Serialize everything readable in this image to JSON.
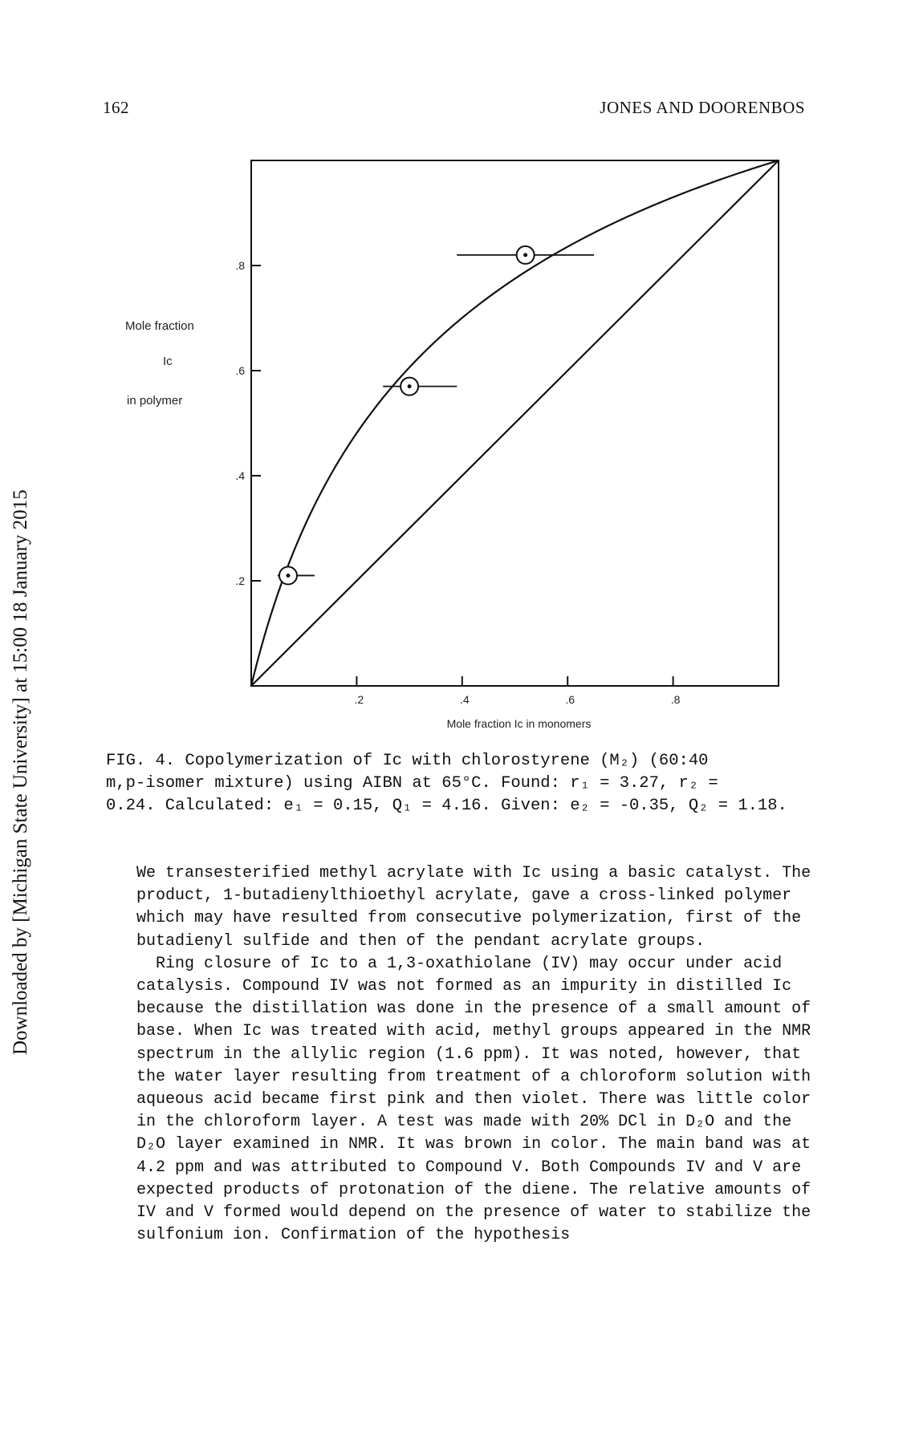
{
  "header": {
    "page_number": "162",
    "running_head": "JONES AND DOORENBOS"
  },
  "side_stamp": "Downloaded by [Michigan State University] at 15:00 18 January 2015",
  "figure": {
    "y_label_lines": [
      "Mole fraction",
      "Ic",
      "in polymer"
    ],
    "x_label": "Mole fraction Ic in monomers",
    "y_ticks": [
      ".8",
      ".6",
      ".4",
      ".2"
    ],
    "x_ticks": [
      ".2",
      ".4",
      ".6",
      ".8"
    ]
  },
  "chart_data": {
    "type": "scatter",
    "xlabel": "Mole fraction Ic in monomers",
    "ylabel": "Mole fraction Ic in polymer",
    "xlim": [
      0,
      1
    ],
    "ylim": [
      0,
      1
    ],
    "x_ticks": [
      0.2,
      0.4,
      0.6,
      0.8
    ],
    "y_ticks": [
      0.2,
      0.4,
      0.6,
      0.8
    ],
    "grid": false,
    "points": [
      {
        "x": 0.07,
        "y": 0.21,
        "xerr_low": 0.05,
        "xerr_high": 0.12
      },
      {
        "x": 0.3,
        "y": 0.57,
        "xerr_low": 0.25,
        "xerr_high": 0.39
      },
      {
        "x": 0.52,
        "y": 0.82,
        "xerr_low": 0.39,
        "xerr_high": 0.65
      }
    ],
    "curves": [
      {
        "kind": "copolymer-composition",
        "r1": 3.27,
        "r2": 0.24
      },
      {
        "kind": "diagonal",
        "x": [
          0,
          1
        ],
        "y": [
          0,
          1
        ]
      }
    ]
  },
  "caption": {
    "lines": [
      "FIG. 4. Copolymerization of Ic with chlorostyrene (M₂) (60:40",
      "m,p-isomer mixture) using AIBN at 65°C.  Found: r₁ = 3.27, r₂ =",
      "0.24.  Calculated: e₁ = 0.15, Q₁ = 4.16.  Given: e₂ = -0.35, Q₂ = 1.18."
    ]
  },
  "body": {
    "paragraphs": [
      "We transesterified methyl acrylate with Ic using a basic catalyst. The product, 1-butadienylthioethyl acrylate, gave a cross-linked polymer which may have resulted from consecutive polymerization, first of the butadienyl sulfide and then of the pendant acrylate groups.",
      "Ring closure of Ic to a 1,3-oxathiolane (IV) may occur under acid catalysis.  Compound IV was not formed as an impurity in distilled Ic because the distillation was done in the presence of a small amount of base.  When Ic was treated with acid, methyl groups appeared in the NMR spectrum in the allylic region (1.6 ppm).  It was noted, however, that the water layer resulting from treatment of a chloroform solution with aqueous acid became first pink and then violet.  There was little color in the chloroform layer.  A test was made with 20% DCl in D₂O and the D₂O layer examined in NMR.  It was brown in color.  The main band was at 4.2 ppm and was attributed to Compound V.  Both Compounds IV and V are expected products of protonation of the diene.  The relative amounts of IV and V formed would depend on the presence of water to stabilize the sulfonium ion.  Confirmation of the hypothesis"
    ]
  }
}
